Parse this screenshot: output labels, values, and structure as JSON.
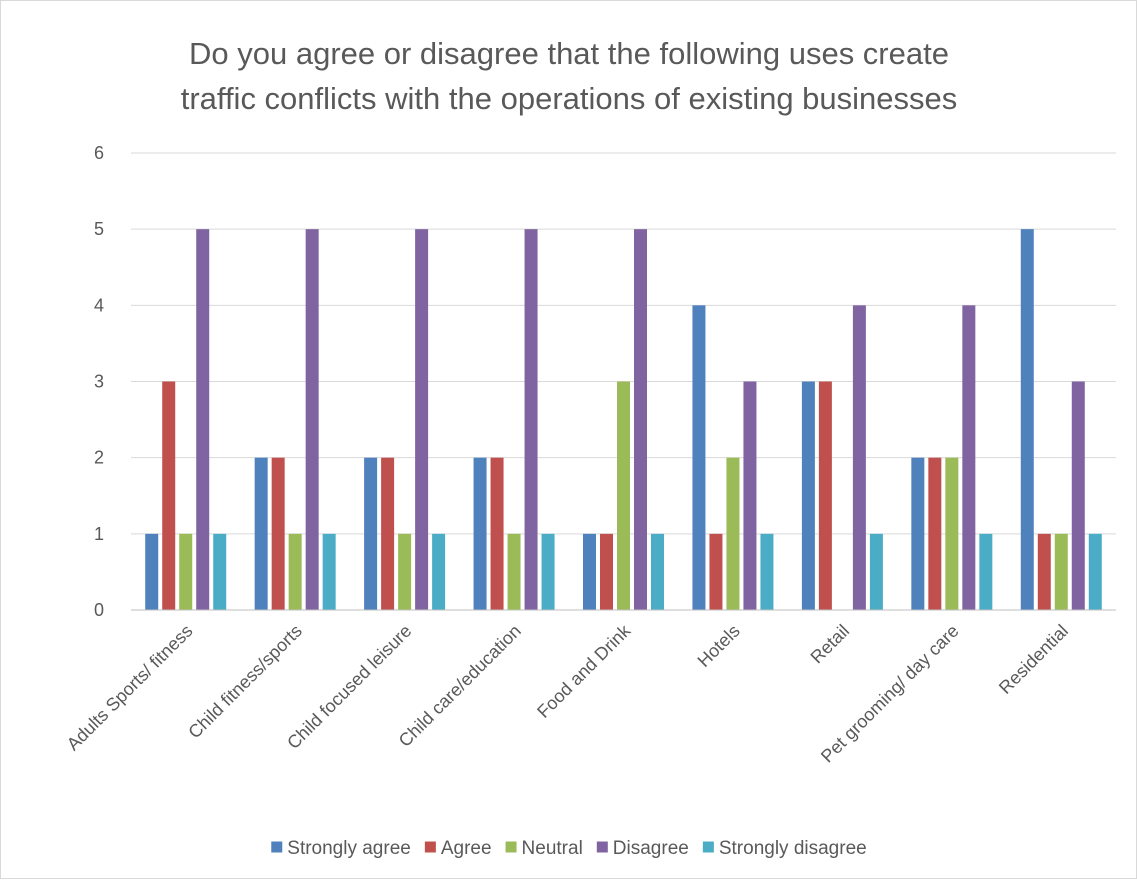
{
  "chart_data": {
    "type": "bar",
    "title_lines": [
      "Do you agree or disagree that the following uses create",
      "traffic conflicts with the operations of existing businesses"
    ],
    "categories": [
      "Adults Sports/ fitness",
      "Child fitness/sports",
      "Child focused leisure",
      "Child  care/education",
      "Food and Drink",
      "Hotels",
      "Retail",
      "Pet grooming/ day care",
      "Residential"
    ],
    "series": [
      {
        "name": "Strongly agree",
        "color": "#4f81bd",
        "values": [
          1,
          2,
          2,
          2,
          1,
          4,
          3,
          2,
          5
        ]
      },
      {
        "name": "Agree",
        "color": "#c0504d",
        "values": [
          3,
          2,
          2,
          2,
          1,
          1,
          3,
          2,
          1
        ]
      },
      {
        "name": "Neutral",
        "color": "#9bbb59",
        "values": [
          1,
          1,
          1,
          1,
          3,
          2,
          0,
          2,
          1
        ]
      },
      {
        "name": "Disagree",
        "color": "#8064a2",
        "values": [
          5,
          5,
          5,
          5,
          5,
          3,
          4,
          4,
          3
        ]
      },
      {
        "name": "Strongly disagree",
        "color": "#4bacc6",
        "values": [
          1,
          1,
          1,
          1,
          1,
          1,
          1,
          1,
          1
        ]
      }
    ],
    "ylim": [
      0,
      6
    ],
    "yticks": [
      "0",
      "1",
      "2",
      "3",
      "4",
      "5",
      "6"
    ],
    "grid": true,
    "legend_position": "bottom"
  }
}
